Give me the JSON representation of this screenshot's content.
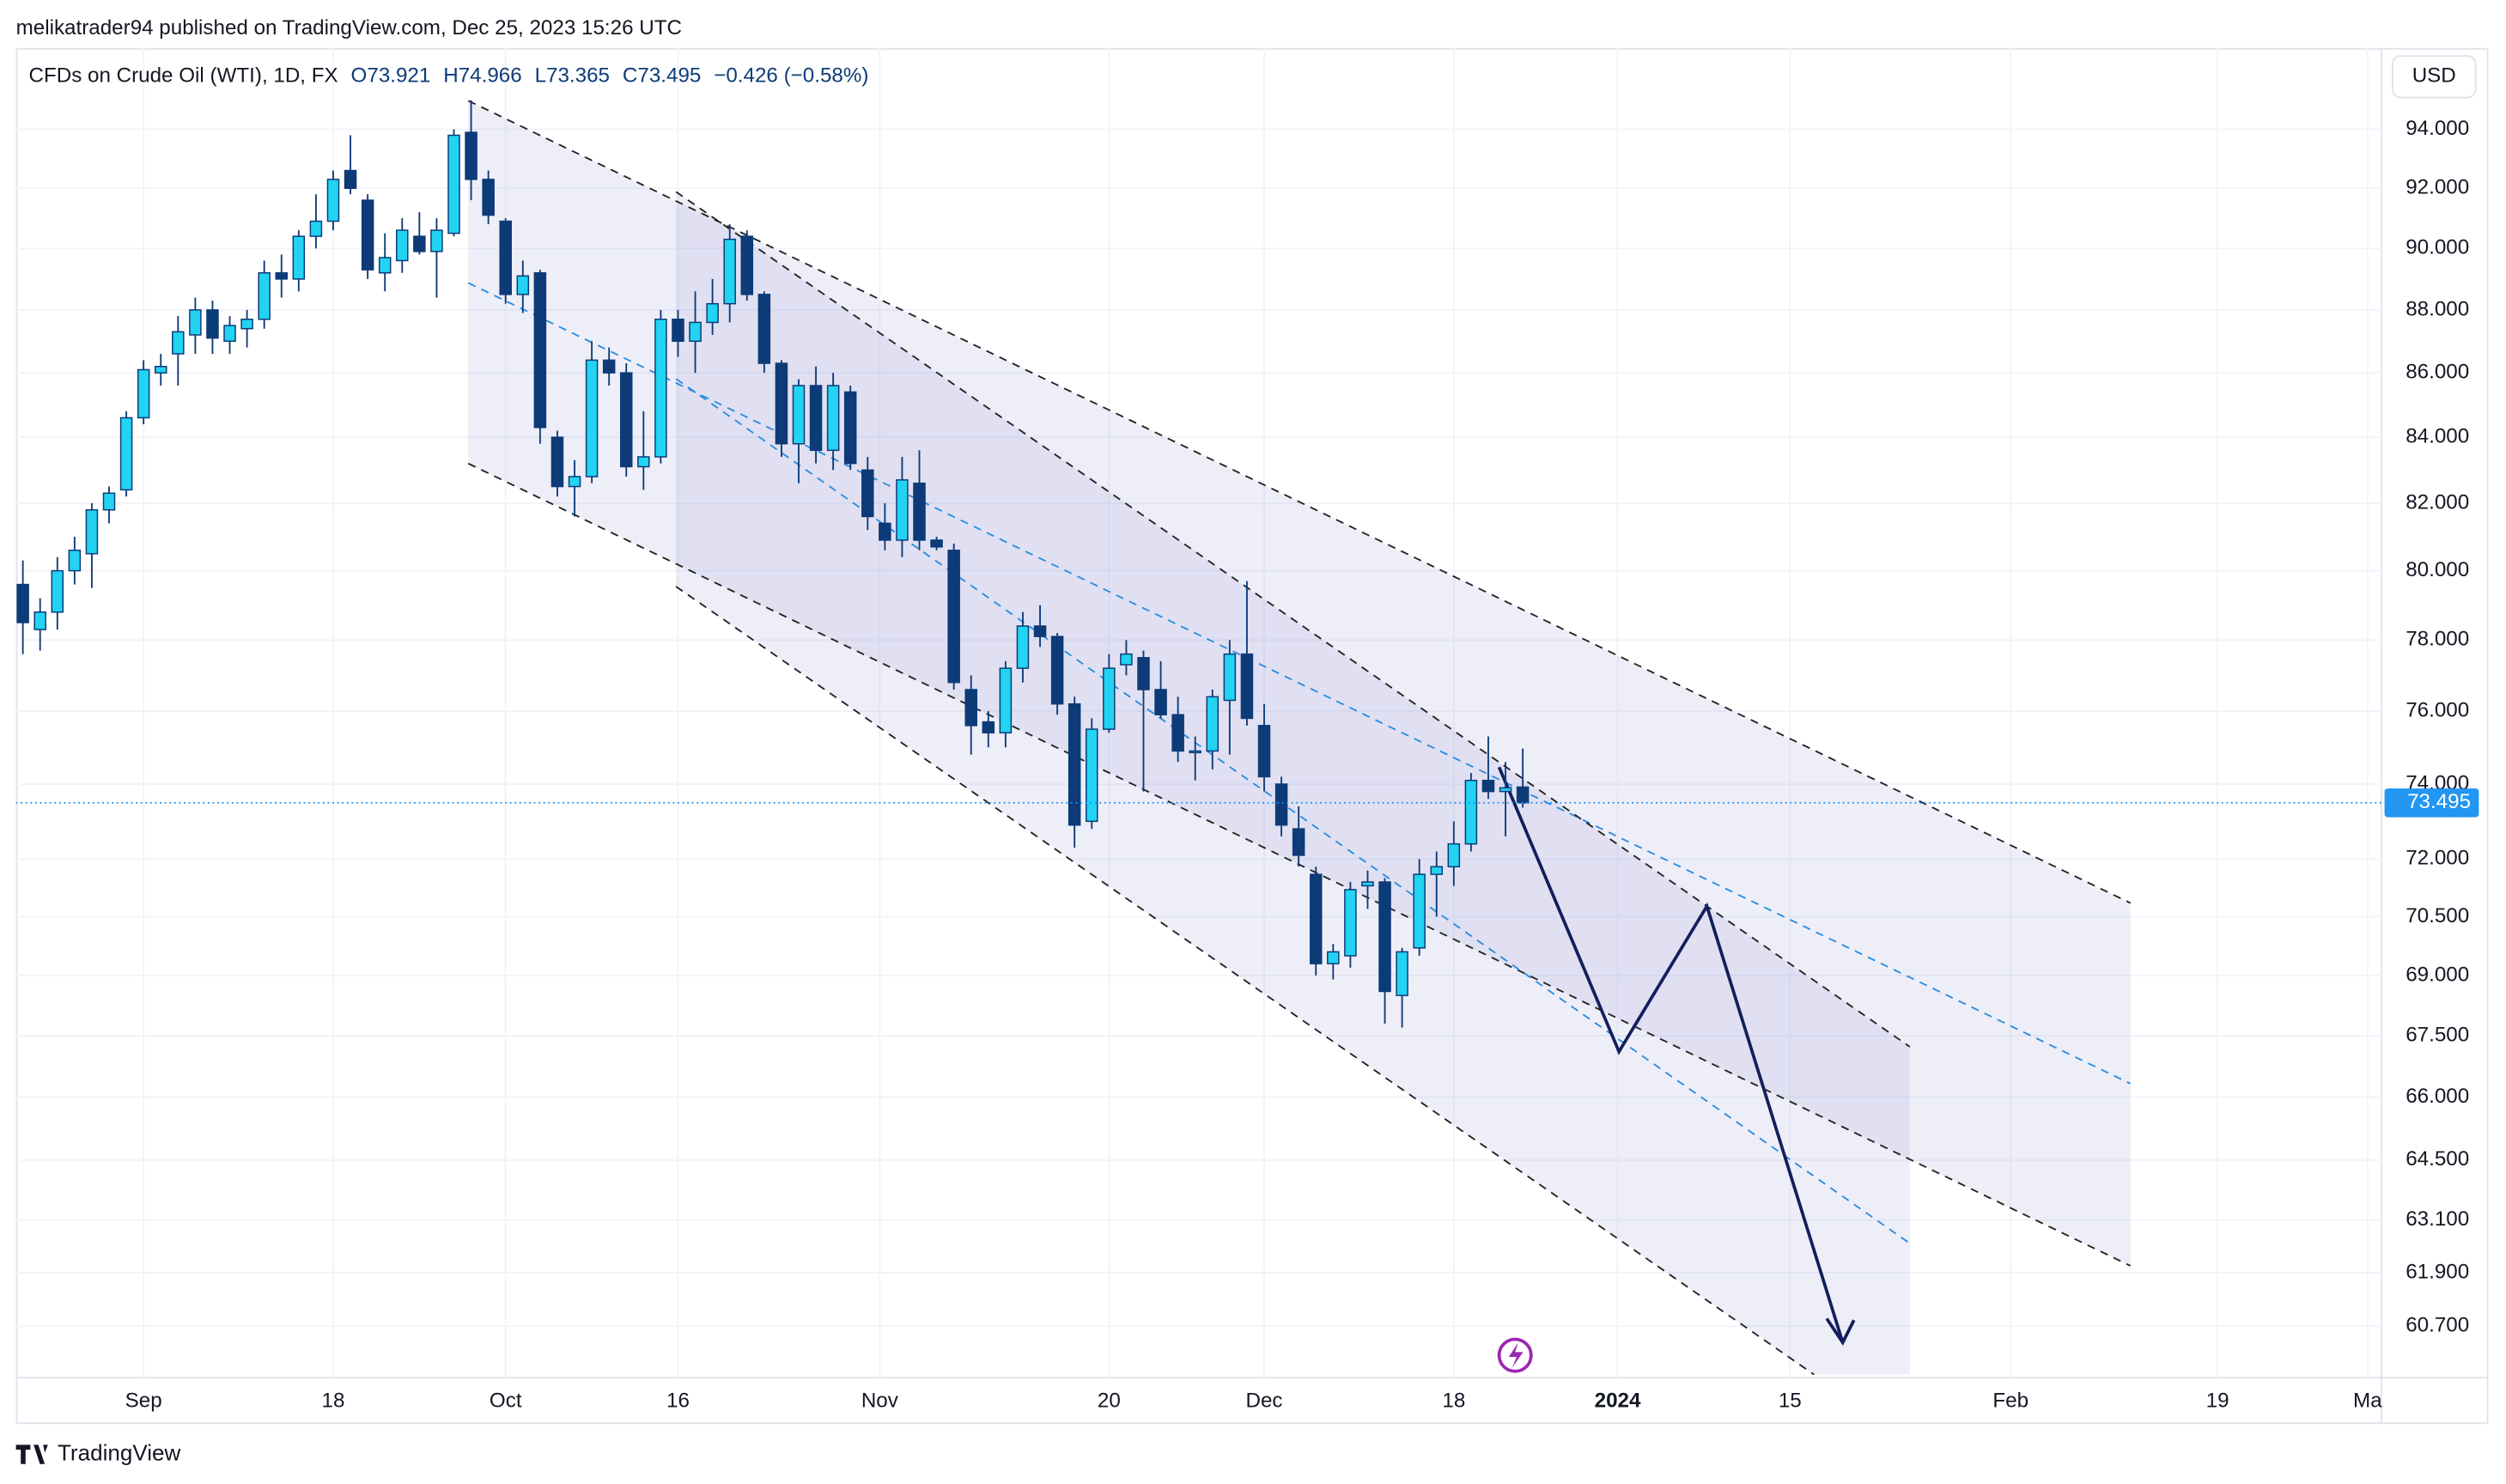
{
  "header": {
    "published": "melikatrader94 published on TradingView.com, Dec 25, 2023 15:26 UTC",
    "brand": "TradingView"
  },
  "chart_data": {
    "type": "candlestick",
    "title": "CFDs on Crude Oil (WTI), 1D, FX",
    "ohlc_legend": {
      "open": "O73.921",
      "high": "H74.966",
      "low": "L73.365",
      "close": "C73.495",
      "change": "−0.426 (−0.58%)"
    },
    "currency": "USD",
    "log_scale": true,
    "grid": true,
    "up_color": "#22d3f2",
    "down_color": "#0d3b78",
    "last_price": {
      "value": 73.495,
      "label": "73.495"
    },
    "xlim": [
      -0.4,
      136.8
    ],
    "xticks": [
      {
        "value": 7,
        "label": "Sep"
      },
      {
        "value": 18,
        "label": "18"
      },
      {
        "value": 28,
        "label": "Oct"
      },
      {
        "value": 38,
        "label": "16"
      },
      {
        "value": 49.7,
        "label": "Nov"
      },
      {
        "value": 63,
        "label": "20"
      },
      {
        "value": 72,
        "label": "Dec"
      },
      {
        "value": 83,
        "label": "18"
      },
      {
        "value": 92.5,
        "label": "2024"
      },
      {
        "value": 102.5,
        "label": "15"
      },
      {
        "value": 115.3,
        "label": "Feb"
      },
      {
        "value": 127.3,
        "label": "19"
      },
      {
        "value": 136,
        "label": "Ma"
      }
    ],
    "ylim": [
      59.57,
      96.84
    ],
    "yticks": [
      {
        "value": 94,
        "label": "94.000"
      },
      {
        "value": 92,
        "label": "92.000"
      },
      {
        "value": 90,
        "label": "90.000"
      },
      {
        "value": 88,
        "label": "88.000"
      },
      {
        "value": 86,
        "label": "86.000"
      },
      {
        "value": 84,
        "label": "84.000"
      },
      {
        "value": 82,
        "label": "82.000"
      },
      {
        "value": 80,
        "label": "80.000"
      },
      {
        "value": 78,
        "label": "78.000"
      },
      {
        "value": 76,
        "label": "76.000"
      },
      {
        "value": 74,
        "label": "74.000"
      },
      {
        "value": 72,
        "label": "72.000"
      },
      {
        "value": 70.5,
        "label": "70.500"
      },
      {
        "value": 69,
        "label": "69.000"
      },
      {
        "value": 67.5,
        "label": "67.500"
      },
      {
        "value": 66,
        "label": "66.000"
      },
      {
        "value": 64.5,
        "label": "64.500"
      },
      {
        "value": 63.1,
        "label": "63.100"
      },
      {
        "value": 61.9,
        "label": "61.900"
      },
      {
        "value": 60.7,
        "label": "60.700"
      }
    ],
    "candles": {
      "open": [
        79.6,
        78.3,
        78.8,
        80.0,
        80.5,
        81.8,
        82.4,
        84.6,
        86.0,
        86.6,
        87.2,
        88.0,
        87.0,
        87.4,
        87.7,
        89.2,
        89.0,
        90.4,
        90.9,
        92.6,
        91.6,
        89.2,
        89.6,
        90.4,
        89.9,
        90.5,
        93.9,
        92.3,
        90.9,
        88.5,
        89.2,
        84.0,
        82.5,
        82.8,
        86.4,
        86.0,
        83.1,
        83.4,
        87.7,
        87.0,
        87.6,
        88.2,
        90.4,
        88.5,
        86.3,
        83.8,
        85.6,
        83.6,
        85.4,
        83.0,
        81.4,
        80.9,
        82.6,
        80.9,
        80.6,
        76.6,
        75.7,
        75.4,
        77.2,
        78.4,
        78.1,
        76.2,
        73.0,
        75.5,
        77.3,
        77.5,
        76.6,
        75.9,
        74.9,
        74.9,
        76.3,
        77.6,
        75.6,
        74.0,
        72.8,
        71.6,
        69.3,
        69.5,
        71.3,
        71.4,
        68.5,
        69.7,
        71.6,
        71.8,
        72.4,
        74.1,
        73.8,
        73.921
      ],
      "high": [
        80.3,
        79.2,
        80.4,
        81.0,
        82.0,
        82.5,
        84.8,
        86.4,
        86.6,
        87.8,
        88.4,
        88.3,
        87.8,
        88.0,
        89.6,
        89.8,
        90.6,
        91.8,
        92.6,
        93.8,
        91.8,
        90.5,
        91.0,
        91.2,
        91.0,
        94.0,
        95.0,
        92.6,
        91.0,
        89.6,
        89.3,
        84.2,
        83.3,
        87.0,
        86.8,
        86.3,
        84.8,
        88.0,
        88.0,
        88.6,
        89.0,
        90.8,
        90.6,
        88.6,
        86.4,
        85.8,
        86.2,
        86.0,
        85.6,
        83.4,
        82.0,
        83.4,
        83.6,
        81.0,
        80.8,
        77.0,
        76.0,
        77.4,
        78.8,
        79.0,
        78.2,
        76.4,
        75.8,
        77.6,
        78.0,
        77.7,
        77.4,
        76.4,
        75.3,
        76.6,
        78.0,
        79.7,
        76.2,
        74.2,
        73.4,
        71.8,
        69.8,
        71.4,
        71.7,
        71.5,
        69.7,
        72.0,
        72.2,
        73.0,
        74.3,
        75.3,
        74.6,
        74.966
      ],
      "low": [
        77.6,
        77.7,
        78.3,
        79.6,
        79.5,
        81.4,
        82.2,
        84.4,
        85.6,
        85.6,
        86.6,
        86.6,
        86.6,
        86.8,
        87.4,
        88.4,
        88.6,
        90.0,
        90.6,
        91.8,
        89.0,
        88.6,
        89.2,
        89.8,
        88.4,
        90.4,
        91.6,
        90.8,
        88.2,
        87.9,
        83.8,
        82.2,
        81.6,
        82.6,
        85.6,
        82.8,
        82.4,
        83.2,
        86.5,
        86.0,
        87.2,
        87.6,
        88.3,
        86.0,
        83.4,
        82.6,
        83.2,
        83.0,
        83.0,
        81.2,
        80.6,
        80.4,
        80.6,
        80.6,
        76.6,
        74.8,
        75.0,
        75.0,
        76.8,
        77.8,
        75.9,
        72.3,
        72.8,
        75.4,
        77.0,
        73.8,
        75.8,
        74.6,
        74.1,
        74.4,
        74.8,
        75.6,
        73.8,
        72.6,
        71.8,
        69.0,
        68.9,
        69.2,
        70.7,
        67.8,
        67.7,
        69.5,
        70.5,
        71.3,
        72.2,
        73.6,
        72.6,
        73.365
      ],
      "close": [
        78.5,
        78.8,
        80.0,
        80.6,
        81.8,
        82.3,
        84.6,
        86.1,
        86.2,
        87.3,
        88.0,
        87.1,
        87.5,
        87.7,
        89.2,
        89.0,
        90.4,
        90.9,
        92.3,
        92.0,
        89.3,
        89.7,
        90.6,
        89.9,
        90.6,
        93.8,
        92.3,
        91.1,
        88.5,
        89.1,
        84.3,
        82.5,
        82.8,
        86.4,
        86.0,
        83.1,
        83.4,
        87.7,
        87.0,
        87.6,
        88.2,
        90.3,
        88.5,
        86.3,
        83.8,
        85.6,
        83.6,
        85.6,
        83.2,
        81.6,
        80.9,
        82.7,
        80.9,
        80.7,
        76.8,
        75.6,
        75.4,
        77.2,
        78.4,
        78.1,
        76.2,
        72.9,
        75.5,
        77.2,
        77.6,
        76.6,
        75.9,
        74.9,
        74.9,
        76.4,
        77.6,
        75.8,
        74.2,
        72.9,
        72.1,
        69.3,
        69.6,
        71.2,
        71.4,
        68.6,
        69.6,
        71.6,
        71.8,
        72.4,
        74.1,
        73.8,
        73.9,
        73.495
      ]
    }
  }
}
